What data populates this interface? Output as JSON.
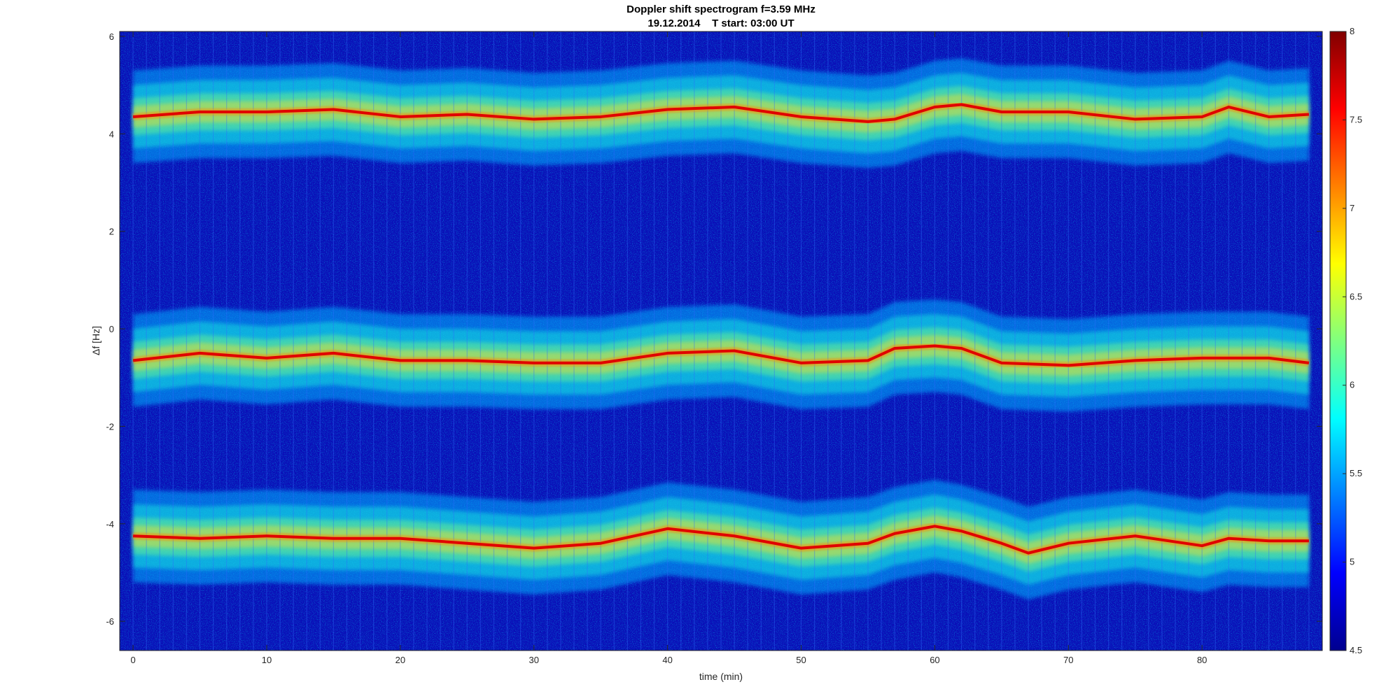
{
  "chart_data": {
    "type": "heatmap",
    "title": "Doppler shift spectrogram f=3.59 MHz",
    "subtitle": "19.12.2014    T start: 03:00 UT",
    "xlabel": "time (min)",
    "ylabel": "Δf [Hz]",
    "xlim": [
      -1,
      89
    ],
    "ylim": [
      -6.6,
      6.1
    ],
    "x_ticks": [
      "0",
      "10",
      "20",
      "30",
      "40",
      "50",
      "60",
      "70",
      "80"
    ],
    "y_ticks": [
      "6",
      "4",
      "2",
      "0",
      "-2",
      "-4",
      "-6"
    ],
    "colorbar": {
      "range": [
        4.5,
        8
      ],
      "ticks": [
        "8",
        "7.5",
        "7",
        "6.5",
        "6",
        "5.5",
        "5",
        "4.5"
      ],
      "colormap": "jet"
    },
    "grid": false,
    "traces": [
      {
        "x": [
          0,
          5,
          10,
          15,
          20,
          25,
          30,
          35,
          40,
          45,
          50,
          55,
          57,
          60,
          62,
          65,
          70,
          75,
          80,
          82,
          85,
          88
        ],
        "y": [
          4.35,
          4.45,
          4.45,
          4.5,
          4.35,
          4.4,
          4.3,
          4.35,
          4.5,
          4.55,
          4.35,
          4.25,
          4.3,
          4.55,
          4.6,
          4.45,
          4.45,
          4.3,
          4.35,
          4.55,
          4.35,
          4.4
        ]
      },
      {
        "x": [
          0,
          5,
          10,
          15,
          20,
          25,
          30,
          35,
          40,
          45,
          50,
          55,
          57,
          60,
          62,
          65,
          70,
          75,
          80,
          85,
          88
        ],
        "y": [
          -0.65,
          -0.5,
          -0.6,
          -0.5,
          -0.65,
          -0.65,
          -0.7,
          -0.7,
          -0.5,
          -0.45,
          -0.7,
          -0.65,
          -0.4,
          -0.35,
          -0.4,
          -0.7,
          -0.75,
          -0.65,
          -0.6,
          -0.6,
          -0.7
        ]
      },
      {
        "x": [
          0,
          5,
          10,
          15,
          20,
          25,
          30,
          35,
          40,
          45,
          50,
          55,
          57,
          60,
          62,
          65,
          67,
          70,
          75,
          80,
          82,
          85,
          88
        ],
        "y": [
          -4.25,
          -4.3,
          -4.25,
          -4.3,
          -4.3,
          -4.4,
          -4.5,
          -4.4,
          -4.1,
          -4.25,
          -4.5,
          -4.4,
          -4.2,
          -4.05,
          -4.15,
          -4.4,
          -4.6,
          -4.4,
          -4.25,
          -4.45,
          -4.3,
          -4.35,
          -4.35
        ]
      }
    ]
  }
}
